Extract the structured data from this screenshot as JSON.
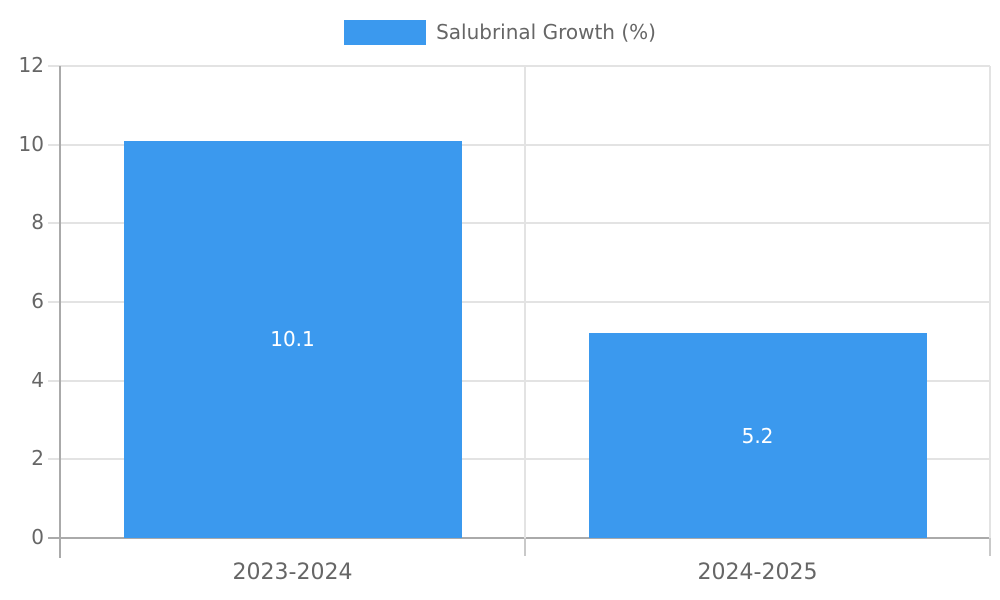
{
  "chart_data": {
    "type": "bar",
    "title": "",
    "xlabel": "",
    "ylabel": "",
    "legend_label": "Salubrinal Growth (%)",
    "legend_position": "top",
    "categories": [
      "2023-2024",
      "2024-2025"
    ],
    "values": [
      10.1,
      5.2
    ],
    "value_labels": [
      "10.1",
      "5.2"
    ],
    "ylim": [
      0,
      12
    ],
    "yticks": [
      0,
      2,
      4,
      6,
      8,
      10,
      12
    ],
    "grid": true,
    "colors": {
      "bar": "#3B99EE",
      "bar_label": "#FFFFFF",
      "grid": "#E3E3E3",
      "axis": "#AAAAAA",
      "x_tick": "#C9C9C9",
      "tick_text": "#666666",
      "background": "#FFFFFF"
    }
  }
}
